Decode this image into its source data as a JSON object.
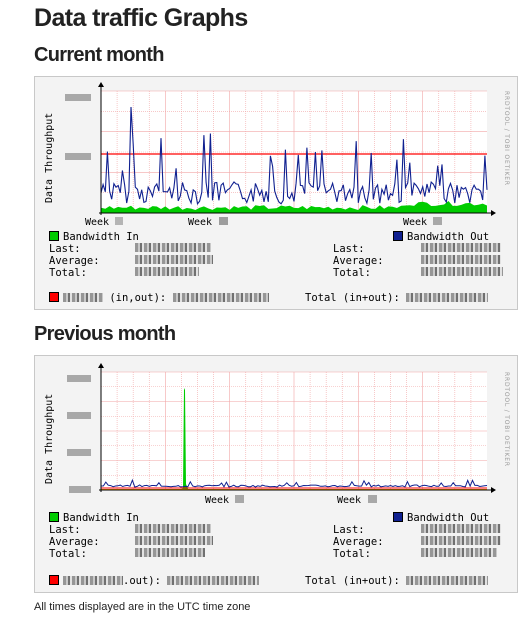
{
  "page_title": "Data traffic Graphs",
  "current": {
    "heading": "Current month",
    "ylabel": "Data Throughput",
    "side_label": "RRDTOOL / TOBI OETIKER",
    "week_prefix": "Week",
    "legend_in": "Bandwidth In",
    "legend_out": "Bandwidth Out",
    "last": "Last:",
    "average": "Average:",
    "total": "Total:",
    "io_label": "(in,out):",
    "total_io": "Total (in+out):"
  },
  "previous": {
    "heading": "Previous month",
    "ylabel": "Data Throughput",
    "side_label": "RRDTOOL / TOBI OETIKER",
    "week_prefix": "Week",
    "legend_in": "Bandwidth In",
    "legend_out": "Bandwidth Out",
    "last": "Last:",
    "average": "Average:",
    "total": "Total:",
    "io_label": ".out):",
    "total_io": "Total (in+out):"
  },
  "colors": {
    "in": "#00cc00",
    "out": "#102090",
    "threshold": "#ff0000",
    "grid": "#f2a0a0"
  },
  "footnote": "All times displayed are in the UTC time zone"
}
